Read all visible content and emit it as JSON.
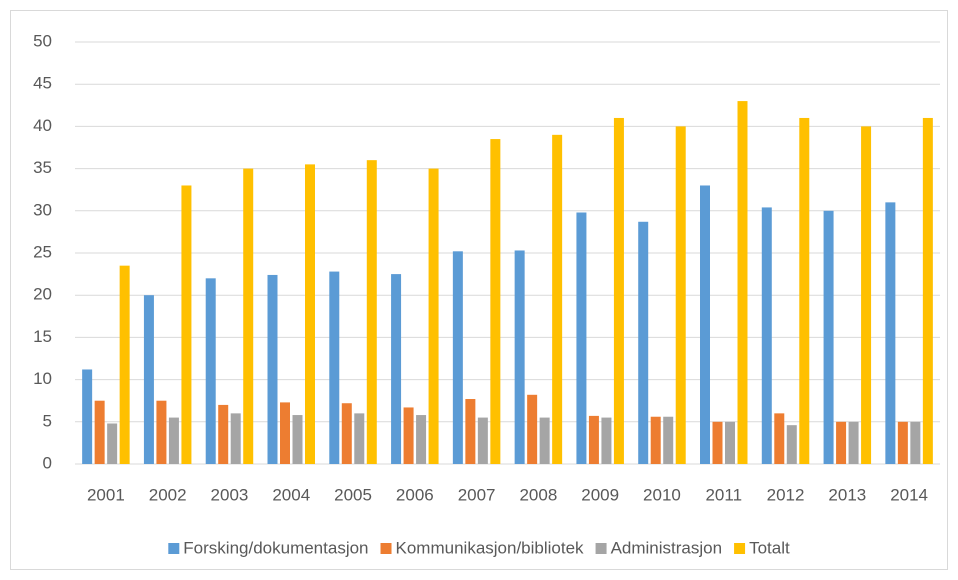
{
  "chart_data": {
    "type": "bar",
    "categories": [
      "2001",
      "2002",
      "2003",
      "2004",
      "2005",
      "2006",
      "2007",
      "2008",
      "2009",
      "2010",
      "2011",
      "2012",
      "2013",
      "2014"
    ],
    "series": [
      {
        "name": "Forsking/dokumentasjon",
        "color": "#5b9bd5",
        "values": [
          11.2,
          20,
          22,
          22.4,
          22.8,
          22.5,
          25.2,
          25.3,
          29.8,
          28.7,
          33,
          30.4,
          30,
          31
        ]
      },
      {
        "name": "Kommunikasjon/bibliotek",
        "color": "#ed7d31",
        "values": [
          7.5,
          7.5,
          7,
          7.3,
          7.2,
          6.7,
          7.7,
          8.2,
          5.7,
          5.6,
          5,
          6,
          5,
          5
        ]
      },
      {
        "name": "Administrasjon",
        "color": "#a5a5a5",
        "values": [
          4.8,
          5.5,
          6,
          5.8,
          6,
          5.8,
          5.5,
          5.5,
          5.5,
          5.6,
          5,
          4.6,
          5,
          5
        ]
      },
      {
        "name": "Totalt",
        "color": "#ffc000",
        "values": [
          23.5,
          33,
          35,
          35.5,
          36,
          35,
          38.5,
          39,
          41,
          40,
          43,
          41,
          40,
          41
        ]
      }
    ],
    "ylim": [
      0,
      50
    ],
    "yticks": [
      0,
      5,
      10,
      15,
      20,
      25,
      30,
      35,
      40,
      45,
      50
    ],
    "grid": true,
    "legend": "bottom"
  }
}
